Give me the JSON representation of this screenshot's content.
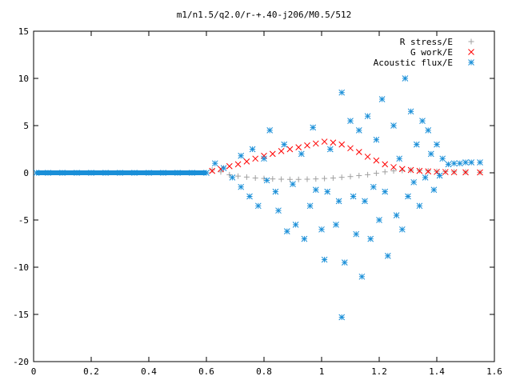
{
  "chart_data": {
    "type": "scatter",
    "title": "m1/n1.5/q2.0/r-+.40-j206/M0.5/512",
    "xlabel": "",
    "ylabel": "",
    "xlim": [
      0,
      1.6
    ],
    "ylim": [
      -20,
      15
    ],
    "x_ticks": [
      "0",
      "0.2",
      "0.4",
      "0.6",
      "0.8",
      "1",
      "1.2",
      "1.4",
      "1.6"
    ],
    "y_ticks": [
      "-20",
      "-15",
      "-10",
      "-5",
      "0",
      "5",
      "10",
      "15"
    ],
    "legend_position": "top-right",
    "grid": false,
    "series": [
      {
        "name": "R stress/E",
        "marker": "plus",
        "color": "#a0a0a0",
        "points": [
          [
            0.62,
            0.3
          ],
          [
            0.65,
            0.1
          ],
          [
            0.68,
            -0.2
          ],
          [
            0.71,
            -0.35
          ],
          [
            0.74,
            -0.45
          ],
          [
            0.77,
            -0.55
          ],
          [
            0.8,
            -0.6
          ],
          [
            0.83,
            -0.65
          ],
          [
            0.86,
            -0.68
          ],
          [
            0.89,
            -0.7
          ],
          [
            0.92,
            -0.7
          ],
          [
            0.95,
            -0.68
          ],
          [
            0.98,
            -0.65
          ],
          [
            1.01,
            -0.6
          ],
          [
            1.04,
            -0.55
          ],
          [
            1.07,
            -0.48
          ],
          [
            1.1,
            -0.4
          ],
          [
            1.13,
            -0.3
          ],
          [
            1.16,
            -0.2
          ],
          [
            1.19,
            -0.05
          ],
          [
            1.22,
            0.1
          ],
          [
            1.25,
            0.2
          ],
          [
            1.28,
            0.25
          ],
          [
            1.31,
            0.28
          ],
          [
            1.34,
            0.25
          ],
          [
            1.37,
            0.2
          ],
          [
            1.4,
            0.15
          ],
          [
            1.43,
            0.12
          ],
          [
            1.46,
            0.1
          ],
          [
            1.5,
            0.08
          ],
          [
            1.55,
            0.05
          ]
        ]
      },
      {
        "name": "G work/E",
        "marker": "cross",
        "color": "#ff0000",
        "points": [
          [
            0.62,
            0.2
          ],
          [
            0.65,
            0.4
          ],
          [
            0.68,
            0.7
          ],
          [
            0.71,
            0.9
          ],
          [
            0.74,
            1.2
          ],
          [
            0.77,
            1.5
          ],
          [
            0.8,
            1.8
          ],
          [
            0.83,
            2.0
          ],
          [
            0.86,
            2.3
          ],
          [
            0.89,
            2.5
          ],
          [
            0.92,
            2.7
          ],
          [
            0.95,
            2.9
          ],
          [
            0.98,
            3.1
          ],
          [
            1.01,
            3.3
          ],
          [
            1.04,
            3.2
          ],
          [
            1.07,
            3.0
          ],
          [
            1.1,
            2.6
          ],
          [
            1.13,
            2.2
          ],
          [
            1.16,
            1.7
          ],
          [
            1.19,
            1.3
          ],
          [
            1.22,
            0.9
          ],
          [
            1.25,
            0.6
          ],
          [
            1.28,
            0.4
          ],
          [
            1.31,
            0.3
          ],
          [
            1.34,
            0.2
          ],
          [
            1.37,
            0.15
          ],
          [
            1.4,
            0.1
          ],
          [
            1.43,
            0.08
          ],
          [
            1.46,
            0.06
          ],
          [
            1.5,
            0.05
          ],
          [
            1.55,
            0.04
          ]
        ]
      },
      {
        "name": "Acoustic flux/E",
        "marker": "star",
        "color": "#1a8fd8",
        "points": [
          [
            0.01,
            0
          ],
          [
            0.05,
            0
          ],
          [
            0.1,
            0
          ],
          [
            0.15,
            0
          ],
          [
            0.2,
            0
          ],
          [
            0.25,
            0
          ],
          [
            0.3,
            0
          ],
          [
            0.35,
            0
          ],
          [
            0.4,
            0
          ],
          [
            0.45,
            0
          ],
          [
            0.5,
            0
          ],
          [
            0.55,
            0
          ],
          [
            0.6,
            0
          ],
          [
            0.63,
            1.0
          ],
          [
            0.66,
            0.5
          ],
          [
            0.69,
            -0.5
          ],
          [
            0.72,
            1.8
          ],
          [
            0.72,
            -1.5
          ],
          [
            0.75,
            -2.5
          ],
          [
            0.76,
            2.5
          ],
          [
            0.78,
            -3.5
          ],
          [
            0.8,
            1.5
          ],
          [
            0.81,
            -0.8
          ],
          [
            0.82,
            4.5
          ],
          [
            0.84,
            -2.0
          ],
          [
            0.85,
            -4.0
          ],
          [
            0.87,
            3.0
          ],
          [
            0.88,
            -6.2
          ],
          [
            0.9,
            -1.2
          ],
          [
            0.91,
            -5.5
          ],
          [
            0.93,
            2.0
          ],
          [
            0.94,
            -7.0
          ],
          [
            0.96,
            -3.5
          ],
          [
            0.97,
            4.8
          ],
          [
            0.98,
            -1.8
          ],
          [
            1.0,
            -6.0
          ],
          [
            1.01,
            -9.2
          ],
          [
            1.02,
            -2.0
          ],
          [
            1.03,
            2.5
          ],
          [
            1.05,
            -5.5
          ],
          [
            1.06,
            -3.0
          ],
          [
            1.07,
            8.5
          ],
          [
            1.07,
            -15.3
          ],
          [
            1.08,
            -9.5
          ],
          [
            1.1,
            5.5
          ],
          [
            1.11,
            -2.5
          ],
          [
            1.12,
            -6.5
          ],
          [
            1.13,
            4.5
          ],
          [
            1.14,
            -11.0
          ],
          [
            1.15,
            -3.0
          ],
          [
            1.16,
            6.0
          ],
          [
            1.17,
            -7.0
          ],
          [
            1.18,
            -1.5
          ],
          [
            1.19,
            3.5
          ],
          [
            1.2,
            -5.0
          ],
          [
            1.21,
            7.8
          ],
          [
            1.22,
            -2.0
          ],
          [
            1.23,
            -8.8
          ],
          [
            1.25,
            5.0
          ],
          [
            1.26,
            -4.5
          ],
          [
            1.27,
            1.5
          ],
          [
            1.28,
            -6.0
          ],
          [
            1.29,
            10.0
          ],
          [
            1.3,
            -2.5
          ],
          [
            1.31,
            6.5
          ],
          [
            1.32,
            -1.0
          ],
          [
            1.33,
            3.0
          ],
          [
            1.34,
            -3.5
          ],
          [
            1.35,
            5.5
          ],
          [
            1.36,
            -0.5
          ],
          [
            1.37,
            4.5
          ],
          [
            1.38,
            2.0
          ],
          [
            1.39,
            -1.8
          ],
          [
            1.4,
            3.0
          ],
          [
            1.41,
            -0.3
          ],
          [
            1.42,
            1.5
          ],
          [
            1.44,
            0.9
          ],
          [
            1.46,
            1.0
          ],
          [
            1.48,
            1.0
          ],
          [
            1.5,
            1.1
          ],
          [
            1.52,
            1.1
          ],
          [
            1.55,
            1.1
          ]
        ]
      }
    ]
  }
}
